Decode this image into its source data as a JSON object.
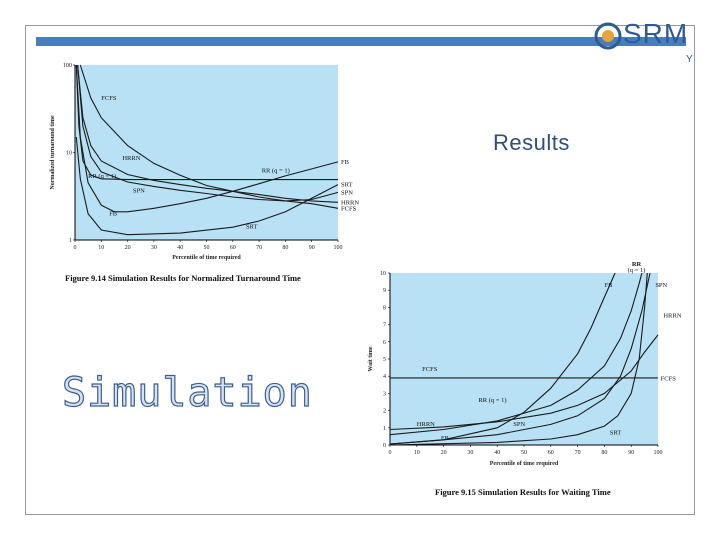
{
  "slide": {
    "logo_text": "SRM",
    "logo_sub": "Y",
    "results_label": "Results",
    "simulation_label": "Simulation",
    "accent_color": "#4a7ebb",
    "plot_bg": "#b9e1f5"
  },
  "chart_data": [
    {
      "type": "line",
      "caption": "Figure 9.14  Simulation Results for Normalized Turnaround Time",
      "xlabel": "Percentile of time required",
      "ylabel": "Normalized turnaround time",
      "yscale": "log",
      "xlim": [
        0,
        100
      ],
      "ylim": [
        1,
        100
      ],
      "xticks": [
        "0",
        "10",
        "20",
        "30",
        "40",
        "50",
        "60",
        "70",
        "80",
        "90",
        "100"
      ],
      "yticks": [
        "1",
        "10",
        "100"
      ],
      "series": [
        {
          "name": "FCFS",
          "label": "FCFS",
          "end_label": "FCFS",
          "points": [
            [
              2,
              100
            ],
            [
              6,
              42
            ],
            [
              10,
              25
            ],
            [
              20,
              12
            ],
            [
              30,
              7.5
            ],
            [
              40,
              5.5
            ],
            [
              50,
              4.2
            ],
            [
              60,
              3.6
            ],
            [
              70,
              3.1
            ],
            [
              80,
              2.8
            ],
            [
              90,
              2.6
            ],
            [
              100,
              2.3
            ]
          ]
        },
        {
          "name": "HRRN",
          "label": "HRRN",
          "end_label": "HRRN",
          "points": [
            [
              1,
              100
            ],
            [
              3,
              25
            ],
            [
              6,
              12
            ],
            [
              10,
              8
            ],
            [
              20,
              5.6
            ],
            [
              30,
              4.8
            ],
            [
              40,
              4.3
            ],
            [
              50,
              3.9
            ],
            [
              60,
              3.6
            ],
            [
              70,
              3.3
            ],
            [
              80,
              3.0
            ],
            [
              90,
              2.8
            ],
            [
              100,
              2.7
            ]
          ]
        },
        {
          "name": "RR (q = 1)",
          "label": "RR (q = 1)",
          "label2": "RR (q = 1)",
          "end_label": "",
          "points": [
            [
              0.5,
              100
            ],
            [
              1.5,
              20
            ],
            [
              3,
              8
            ],
            [
              6,
              5.5
            ],
            [
              10,
              5.0
            ],
            [
              20,
              4.9
            ],
            [
              40,
              4.9
            ],
            [
              60,
              4.9
            ],
            [
              80,
              4.9
            ],
            [
              100,
              4.9
            ]
          ]
        },
        {
          "name": "SPN",
          "label": "SPN",
          "end_label": "SPN",
          "points": [
            [
              1,
              100
            ],
            [
              3,
              20
            ],
            [
              6,
              9
            ],
            [
              10,
              6
            ],
            [
              20,
              4.6
            ],
            [
              30,
              4.1
            ],
            [
              40,
              3.7
            ],
            [
              50,
              3.4
            ],
            [
              60,
              3.1
            ],
            [
              70,
              2.9
            ],
            [
              80,
              2.8
            ],
            [
              90,
              2.9
            ],
            [
              100,
              3.5
            ]
          ]
        },
        {
          "name": "FB",
          "label": "FB",
          "end_label": "FB",
          "points": [
            [
              0.5,
              100
            ],
            [
              2,
              15
            ],
            [
              5,
              4.5
            ],
            [
              10,
              2.5
            ],
            [
              15,
              2.1
            ],
            [
              20,
              2.1
            ],
            [
              30,
              2.3
            ],
            [
              40,
              2.6
            ],
            [
              50,
              3.0
            ],
            [
              60,
              3.6
            ],
            [
              70,
              4.4
            ],
            [
              80,
              5.4
            ],
            [
              90,
              6.5
            ],
            [
              100,
              7.8
            ]
          ]
        },
        {
          "name": "SRT",
          "label": "SRT",
          "end_label": "SRT",
          "points": [
            [
              0.5,
              15
            ],
            [
              2,
              5
            ],
            [
              5,
              2
            ],
            [
              10,
              1.3
            ],
            [
              20,
              1.15
            ],
            [
              40,
              1.2
            ],
            [
              60,
              1.4
            ],
            [
              70,
              1.65
            ],
            [
              80,
              2.1
            ],
            [
              90,
              3.0
            ],
            [
              100,
              4.3
            ]
          ]
        }
      ]
    },
    {
      "type": "line",
      "caption": "Figure 9.15  Simulation Results for Waiting Time",
      "xlabel": "Percentile of time required",
      "ylabel": "Wait time",
      "xlim": [
        0,
        100
      ],
      "ylim": [
        0,
        10
      ],
      "xticks": [
        "0",
        "10",
        "20",
        "30",
        "40",
        "50",
        "60",
        "70",
        "80",
        "90",
        "100"
      ],
      "yticks": [
        "0",
        "1",
        "2",
        "3",
        "4",
        "5",
        "6",
        "7",
        "8",
        "9",
        "10"
      ],
      "top_label_rr": "RR",
      "top_label_q": "(q = 1)",
      "series": [
        {
          "name": "FCFS",
          "label": "FCFS",
          "end_label": "FCFS",
          "points": [
            [
              0,
              3.9
            ],
            [
              100,
              3.9
            ]
          ]
        },
        {
          "name": "RR (q = 1)",
          "label": "RR (q = 1)",
          "end_label": "",
          "points": [
            [
              0,
              0.6
            ],
            [
              20,
              0.9
            ],
            [
              40,
              1.4
            ],
            [
              60,
              2.3
            ],
            [
              70,
              3.2
            ],
            [
              80,
              4.6
            ],
            [
              86,
              6.2
            ],
            [
              90,
              7.8
            ],
            [
              93,
              9.4
            ],
            [
              94,
              10
            ]
          ]
        },
        {
          "name": "FB",
          "label": "FB",
          "end_label": "FB",
          "points": [
            [
              0,
              0.05
            ],
            [
              20,
              0.3
            ],
            [
              40,
              1.0
            ],
            [
              50,
              1.9
            ],
            [
              60,
              3.3
            ],
            [
              70,
              5.3
            ],
            [
              75,
              6.8
            ],
            [
              80,
              8.6
            ],
            [
              84,
              10
            ]
          ]
        },
        {
          "name": "SPN",
          "label": "SPN",
          "end_label": "SPN",
          "points": [
            [
              0,
              0.05
            ],
            [
              20,
              0.3
            ],
            [
              40,
              0.6
            ],
            [
              60,
              1.2
            ],
            [
              70,
              1.7
            ],
            [
              80,
              2.7
            ],
            [
              86,
              4.0
            ],
            [
              90,
              5.6
            ],
            [
              94,
              7.8
            ],
            [
              97,
              10
            ]
          ]
        },
        {
          "name": "HRRN",
          "label": "HRRN",
          "end_label": "HRRN",
          "points": [
            [
              0,
              0.9
            ],
            [
              20,
              1.05
            ],
            [
              40,
              1.35
            ],
            [
              60,
              1.85
            ],
            [
              70,
              2.3
            ],
            [
              80,
              3.0
            ],
            [
              90,
              4.3
            ],
            [
              95,
              5.4
            ],
            [
              100,
              6.4
            ]
          ]
        },
        {
          "name": "SRT",
          "label": "SRT",
          "end_label": "",
          "points": [
            [
              0,
              0.0
            ],
            [
              40,
              0.15
            ],
            [
              60,
              0.35
            ],
            [
              70,
              0.6
            ],
            [
              80,
              1.1
            ],
            [
              85,
              1.7
            ],
            [
              90,
              3.0
            ],
            [
              93,
              5.0
            ],
            [
              95,
              8.0
            ],
            [
              96,
              10
            ]
          ]
        }
      ]
    }
  ]
}
